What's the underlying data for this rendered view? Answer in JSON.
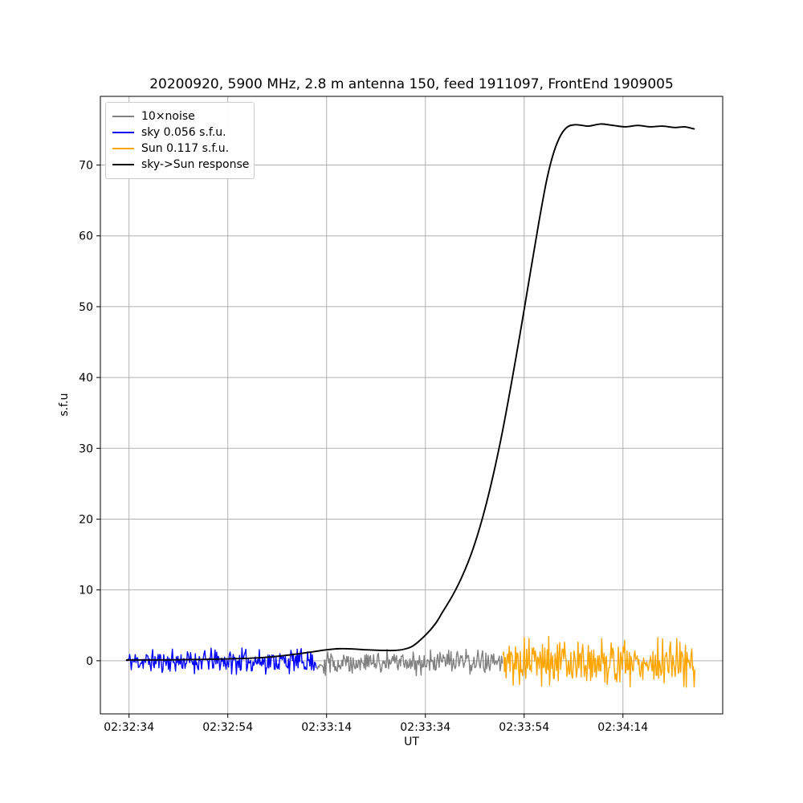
{
  "figure": {
    "title": "20200920, 5900 MHz, 2.8 m antenna 150, feed 1911097, FrontEnd 1909005",
    "xlabel": "UT",
    "ylabel": "s.f.u",
    "background": "#ffffff"
  },
  "chart_data": {
    "type": "line",
    "title": "20200920, 5900 MHz, 2.8 m antenna 150, feed 1911097, FrontEnd 1909005",
    "xlabel": "UT",
    "ylabel": "s.f.u",
    "grid": true,
    "grid_color": "#b0b0b0",
    "x_axis": {
      "time_reference": "02:32:34",
      "tick_labels": [
        "02:32:34",
        "02:32:54",
        "02:33:14",
        "02:33:34",
        "02:33:54",
        "02:34:14"
      ],
      "tick_seconds": [
        0,
        20,
        40,
        60,
        80,
        100
      ],
      "xlim_seconds": [
        -5.8,
        120.2
      ]
    },
    "y_axis": {
      "ticks": [
        0,
        10,
        20,
        30,
        40,
        50,
        60,
        70
      ],
      "ylim": [
        -7.5,
        79.7
      ]
    },
    "legend": {
      "position": "upper left",
      "entries": [
        {
          "label": "10×noise",
          "color": "#808080"
        },
        {
          "label": "sky 0.056 s.f.u.",
          "color": "#0000ff"
        },
        {
          "label": "Sun 0.117 s.f.u.",
          "color": "#ffa500"
        },
        {
          "label": "sky->Sun response",
          "color": "#000000"
        }
      ]
    },
    "series": [
      {
        "name": "10×noise",
        "kind": "noise",
        "color": "#808080",
        "start_time": "02:33:12",
        "end_time": "02:33:50",
        "t_start": 38.0,
        "t_end": 75.7,
        "mean": -0.25,
        "amplitude": 1.3,
        "seed": 29
      },
      {
        "name": "sky 0.056 s.f.u.",
        "kind": "noise",
        "color": "#0000ff",
        "start_time": "02:32:34",
        "end_time": "02:33:12",
        "t_start": -0.5,
        "t_end": 38.0,
        "mean": -0.05,
        "amplitude": 1.3,
        "seed": 11
      },
      {
        "name": "Sun 0.117 s.f.u.",
        "kind": "noise",
        "color": "#ffa500",
        "start_time": "02:33:50",
        "end_time": "02:34:28",
        "t_start": 75.7,
        "t_end": 114.7,
        "mean": -0.15,
        "amplitude": 2.5,
        "seed": 5
      },
      {
        "name": "sky->Sun response",
        "kind": "curve",
        "color": "#000000",
        "start_time": "02:32:34",
        "end_time": "02:34:28",
        "points": [
          [
            -0.5,
            0.1
          ],
          [
            4,
            0.12
          ],
          [
            10,
            0.15
          ],
          [
            16,
            0.2
          ],
          [
            22,
            0.3
          ],
          [
            27,
            0.45
          ],
          [
            31,
            0.7
          ],
          [
            34.5,
            1.0
          ],
          [
            37.5,
            1.3
          ],
          [
            40,
            1.55
          ],
          [
            42.5,
            1.7
          ],
          [
            45,
            1.68
          ],
          [
            48,
            1.55
          ],
          [
            51,
            1.47
          ],
          [
            53.5,
            1.45
          ],
          [
            55.5,
            1.6
          ],
          [
            57.5,
            2.1
          ],
          [
            60,
            3.6
          ],
          [
            62,
            5.2
          ],
          [
            63.5,
            6.9
          ],
          [
            65.5,
            9.2
          ],
          [
            67.5,
            12.0
          ],
          [
            69.5,
            15.5
          ],
          [
            71.5,
            20.0
          ],
          [
            73.5,
            25.5
          ],
          [
            75.5,
            32.0
          ],
          [
            77.5,
            39.5
          ],
          [
            79.5,
            47.5
          ],
          [
            81.3,
            55.0
          ],
          [
            83,
            62.0
          ],
          [
            84.6,
            68.0
          ],
          [
            86,
            71.8
          ],
          [
            87.4,
            74.2
          ],
          [
            88.8,
            75.4
          ],
          [
            90.5,
            75.7
          ],
          [
            93,
            75.5
          ],
          [
            95.5,
            75.8
          ],
          [
            98,
            75.6
          ],
          [
            100.5,
            75.4
          ],
          [
            103,
            75.6
          ],
          [
            105.5,
            75.4
          ],
          [
            108,
            75.5
          ],
          [
            110.5,
            75.3
          ],
          [
            112.5,
            75.4
          ],
          [
            114.4,
            75.1
          ]
        ]
      }
    ]
  }
}
